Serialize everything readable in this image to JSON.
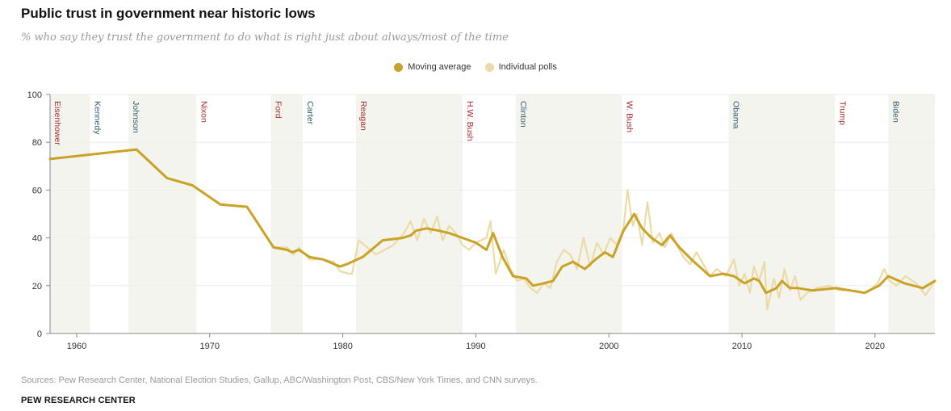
{
  "title": "Public trust in government near historic lows",
  "subtitle": "% who say they trust the government to do what is right just about always/most of the time",
  "legend": {
    "moving_average": "Moving average",
    "individual_polls": "Individual polls"
  },
  "colors": {
    "moving_average": "#C9A227",
    "individual_polls": "#EBDBA6",
    "shade": "#F4F4EE",
    "republican": "#A52A2A",
    "democrat": "#2F5B6B",
    "axis": "#888888",
    "grid": "#EEEEEE"
  },
  "source": "Sources: Pew Research Center, National Election Studies, Gallup, ABC/Washington Post, CBS/New York Times, and CNN surveys.",
  "credit": "PEW RESEARCH CENTER",
  "chart_data": {
    "type": "line",
    "title": "Public trust in government near historic lows",
    "xlabel": "",
    "ylabel": "",
    "xlim": [
      1958,
      2024.5
    ],
    "ylim": [
      0,
      100
    ],
    "x_ticks": [
      1960,
      1970,
      1980,
      1990,
      2000,
      2010,
      2020
    ],
    "y_ticks": [
      0,
      20,
      40,
      60,
      80,
      100
    ],
    "presidents": [
      {
        "name": "Eisenhower",
        "start": 1958,
        "end": 1961,
        "party": "R"
      },
      {
        "name": "Kennedy",
        "start": 1961,
        "end": 1963.9,
        "party": "D"
      },
      {
        "name": "Johnson",
        "start": 1963.9,
        "end": 1969,
        "party": "D"
      },
      {
        "name": "Nixon",
        "start": 1969,
        "end": 1974.6,
        "party": "R"
      },
      {
        "name": "Ford",
        "start": 1974.6,
        "end": 1977,
        "party": "R"
      },
      {
        "name": "Carter",
        "start": 1977,
        "end": 1981,
        "party": "D"
      },
      {
        "name": "Reagan",
        "start": 1981,
        "end": 1989,
        "party": "R"
      },
      {
        "name": "H.W. Bush",
        "start": 1989,
        "end": 1993,
        "party": "R"
      },
      {
        "name": "Clinton",
        "start": 1993,
        "end": 2001,
        "party": "D"
      },
      {
        "name": "W. Bush",
        "start": 2001,
        "end": 2009,
        "party": "R"
      },
      {
        "name": "Obama",
        "start": 2009,
        "end": 2017,
        "party": "D"
      },
      {
        "name": "Trump",
        "start": 2017,
        "end": 2021,
        "party": "R"
      },
      {
        "name": "Biden",
        "start": 2021,
        "end": 2024.5,
        "party": "D"
      }
    ],
    "series": [
      {
        "name": "Moving average",
        "x": [
          1958,
          1964.5,
          1966.8,
          1968.7,
          1970.8,
          1972.8,
          1974.8,
          1975.8,
          1976.2,
          1976.7,
          1977.5,
          1978.5,
          1979.8,
          1980.3,
          1981.5,
          1983,
          1984.5,
          1985.1,
          1985.5,
          1986.3,
          1987.2,
          1988,
          1989,
          1990,
          1990.8,
          1991.3,
          1992,
          1992.8,
          1993.8,
          1994.3,
          1995.1,
          1995.8,
          1996.5,
          1997.3,
          1998.2,
          1999,
          1999.7,
          2000.3,
          2001.1,
          2001.9,
          2002.5,
          2003.2,
          2004,
          2004.6,
          2005.3,
          2006.2,
          2007.6,
          2008.6,
          2009.4,
          2010.2,
          2010.9,
          2011.3,
          2011.8,
          2012.6,
          2013,
          2013.6,
          2014.2,
          2015.3,
          2017.1,
          2019.2,
          2020.3,
          2021,
          2022.2,
          2023.6,
          2024.5
        ],
        "values": [
          73,
          77,
          65,
          62,
          54,
          53,
          36,
          35,
          34,
          35,
          32,
          31,
          28,
          29,
          32,
          39,
          40,
          41,
          43,
          44,
          43,
          42,
          40,
          38,
          35,
          42,
          32,
          24,
          23,
          20,
          21,
          22,
          28,
          30,
          27,
          31,
          34,
          32,
          43,
          50,
          44,
          40,
          37,
          41,
          36,
          31,
          24,
          25,
          24,
          21,
          23,
          22,
          17,
          19,
          22,
          19,
          19,
          18,
          19,
          17,
          20,
          24,
          21,
          19,
          22
        ]
      },
      {
        "name": "Individual polls",
        "x": [
          1958,
          1964.5,
          1966.8,
          1968.7,
          1970.8,
          1972.8,
          1974.8,
          1975.8,
          1976.3,
          1976.7,
          1977.5,
          1978.5,
          1979.3,
          1979.8,
          1980.5,
          1980.7,
          1981.2,
          1982.5,
          1983.8,
          1984.6,
          1985.1,
          1985.6,
          1986.1,
          1986.6,
          1987.1,
          1987.5,
          1988,
          1988.5,
          1989,
          1989.5,
          1990,
          1990.8,
          1991.1,
          1991.5,
          1992.1,
          1992.6,
          1993.1,
          1993.6,
          1994.1,
          1994.6,
          1995.1,
          1995.6,
          1996.1,
          1996.6,
          1997.1,
          1997.6,
          1998.1,
          1998.6,
          1999.1,
          1999.6,
          2000.1,
          2000.6,
          2001.1,
          2001.4,
          2001.8,
          2002.1,
          2002.5,
          2002.9,
          2003.3,
          2003.8,
          2004.2,
          2004.7,
          2005.1,
          2005.6,
          2006.1,
          2006.6,
          2007.1,
          2007.6,
          2008.1,
          2008.8,
          2009.4,
          2009.8,
          2010.2,
          2010.6,
          2010.9,
          2011.3,
          2011.7,
          2011.9,
          2012.4,
          2012.8,
          2013.2,
          2013.6,
          2014,
          2014.4,
          2014.9,
          2015.6,
          2016.5,
          2017.3,
          2018.5,
          2019.4,
          2020.2,
          2020.7,
          2021.1,
          2021.6,
          2022.3,
          2023.1,
          2023.8,
          2024.5
        ],
        "values": [
          73,
          77,
          65,
          62,
          54,
          53,
          36,
          36,
          33,
          36,
          31,
          31,
          30,
          26,
          25,
          25,
          39,
          33,
          37,
          42,
          47,
          39,
          48,
          42,
          49,
          39,
          45,
          42,
          37,
          35,
          38,
          40,
          47,
          25,
          35,
          27,
          22,
          23,
          19,
          17,
          21,
          19,
          30,
          35,
          33,
          27,
          40,
          28,
          38,
          33,
          40,
          37,
          44,
          60,
          45,
          50,
          37,
          55,
          38,
          42,
          36,
          42,
          37,
          32,
          29,
          34,
          29,
          24,
          27,
          24,
          31,
          20,
          25,
          17,
          28,
          22,
          30,
          10,
          23,
          15,
          27,
          18,
          24,
          14,
          17,
          19,
          20,
          18,
          18,
          17,
          21,
          27,
          22,
          20,
          24,
          21,
          16,
          22
        ]
      }
    ]
  }
}
